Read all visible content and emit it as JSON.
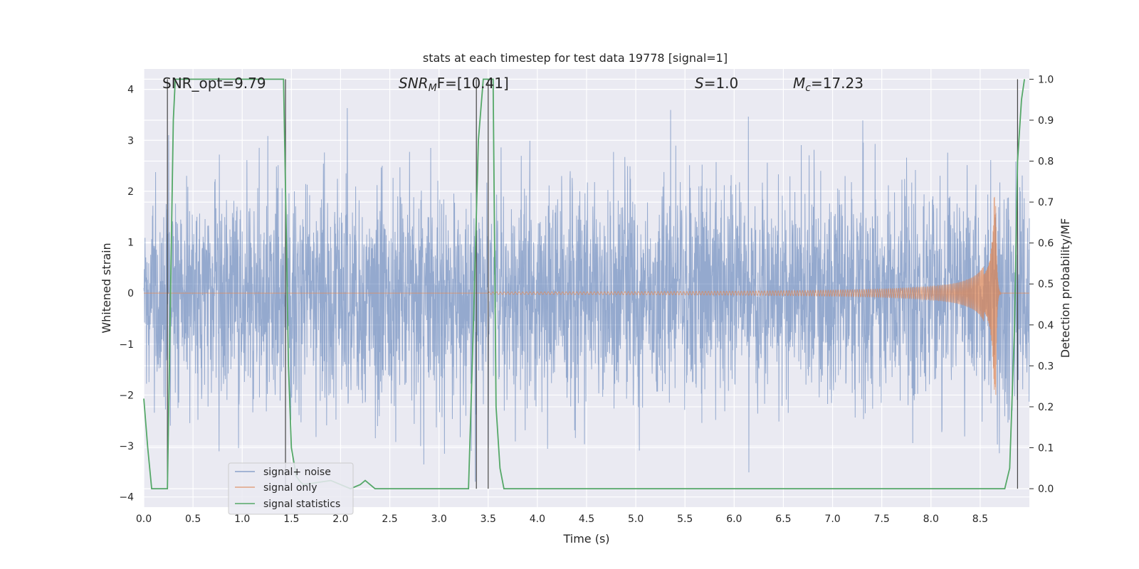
{
  "chart_data": {
    "type": "line",
    "title": "stats at each timestep for test data 19778 [signal=1]",
    "xlabel": "Time (s)",
    "ylabel_left": "Whitened strain",
    "ylabel_right": "Detection probability/MF",
    "xlim": [
      0.0,
      9.0
    ],
    "ylim_left": [
      -4.2,
      4.4
    ],
    "ylim_right": [
      -0.045,
      1.025
    ],
    "xticks": [
      "0.0",
      "0.5",
      "1.0",
      "1.5",
      "2.0",
      "2.5",
      "3.0",
      "3.5",
      "4.0",
      "4.5",
      "5.0",
      "5.5",
      "6.0",
      "6.5",
      "7.0",
      "7.5",
      "8.0",
      "8.5"
    ],
    "yticks_left": [
      "4",
      "3",
      "2",
      "1",
      "0",
      "−1",
      "−2",
      "−3",
      "−4"
    ],
    "yticks_right": [
      "1.0",
      "0.9",
      "0.8",
      "0.7",
      "0.6",
      "0.5",
      "0.4",
      "0.3",
      "0.2",
      "0.1",
      "0.0"
    ],
    "grid": true,
    "legend_position": "lower-left",
    "annotations": {
      "snr_opt": "SNR_opt=9.79",
      "snr_mf_base": "SNR",
      "snr_mf_sub": "M",
      "snr_mf_rest": "F=[10.41]",
      "s_base": "S",
      "s_rest": "=1.0",
      "mc_base": "M",
      "mc_sub": "c",
      "mc_rest": "=17.23"
    },
    "series": [
      {
        "name": "signal+ noise",
        "axis": "left",
        "color": "#4c72b0",
        "description": "noisy whitened strain, roughly within -2 to 2.5 with spikes to about +/-3.5",
        "amplitude_envelope": 1.6
      },
      {
        "name": "signal only",
        "axis": "left",
        "color": "#dd8452",
        "description": "chirp starting near 3.5 s, growing to peak amplitude about 1.9 at 8.64 s",
        "start": 3.5,
        "peak_time": 8.64,
        "peak_amplitude": 1.9
      },
      {
        "name": "signal statistics",
        "axis": "right",
        "color": "#55a868",
        "x": [
          0.0,
          0.04,
          0.08,
          0.12,
          0.24,
          0.28,
          0.3,
          0.32,
          0.34,
          1.42,
          1.45,
          1.47,
          1.5,
          1.55,
          1.58,
          1.62,
          1.9,
          2.0,
          2.1,
          2.2,
          2.25,
          2.3,
          2.35,
          2.4,
          3.3,
          3.35,
          3.4,
          3.45,
          3.55,
          3.58,
          3.62,
          3.66,
          8.75,
          8.8,
          8.85,
          8.88,
          8.92,
          8.95
        ],
        "y": [
          0.22,
          0.1,
          0.0,
          0.0,
          0.0,
          0.6,
          0.9,
          1.0,
          1.0,
          1.0,
          0.6,
          0.3,
          0.1,
          0.03,
          0.02,
          0.01,
          0.02,
          0.01,
          0.0,
          0.01,
          0.02,
          0.01,
          0.0,
          0.0,
          0.0,
          0.4,
          0.85,
          1.0,
          1.0,
          0.2,
          0.05,
          0.0,
          0.0,
          0.05,
          0.4,
          0.8,
          0.95,
          1.0
        ]
      }
    ],
    "vertical_lines": [
      0.24,
      1.44,
      3.38,
      3.5,
      8.88
    ]
  }
}
